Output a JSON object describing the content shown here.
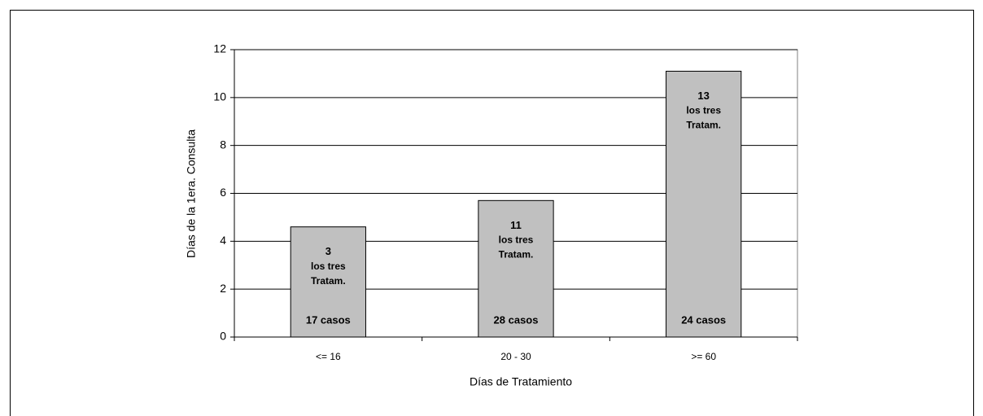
{
  "chart_data": {
    "type": "bar",
    "x_label": "Días de Tratamiento",
    "y_label": "Días de la 1era. Consulta",
    "categories": [
      "<= 16",
      "20 - 30",
      ">= 60"
    ],
    "values": [
      4.6,
      5.7,
      11.1
    ],
    "color": "#c0c0c0",
    "annotations": [
      {
        "lines": [
          "3",
          "los tres",
          "Tratam."
        ],
        "cases": "17 casos"
      },
      {
        "lines": [
          "11",
          "los tres",
          "Tratam."
        ],
        "cases": "28 casos"
      },
      {
        "lines": [
          "13",
          "los tres",
          "Tratam."
        ],
        "cases": "24 casos"
      }
    ],
    "ylim": [
      0,
      12
    ],
    "yticks": [
      0,
      2,
      4,
      6,
      8,
      10,
      12
    ],
    "grid": true
  }
}
